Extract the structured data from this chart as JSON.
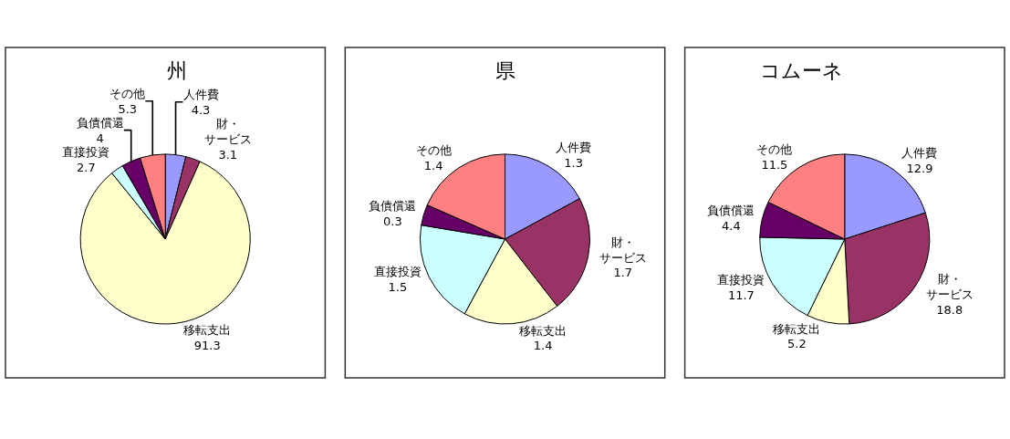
{
  "chart_data": [
    {
      "type": "pie",
      "title": "州",
      "categories": [
        "人件費",
        "財・サービス",
        "移転支出",
        "直接投資",
        "負債償還",
        "その他"
      ],
      "values": [
        4.3,
        3.1,
        91.3,
        2.7,
        4,
        5.3
      ],
      "colors": [
        "#9999ff",
        "#993366",
        "#ffffcc",
        "#ccffff",
        "#660066",
        "#ff8080"
      ],
      "data_labels": true
    },
    {
      "type": "pie",
      "title": "県",
      "categories": [
        "人件費",
        "財・サービス",
        "移転支出",
        "直接投資",
        "負債償還",
        "その他"
      ],
      "values": [
        1.3,
        1.7,
        1.4,
        1.5,
        0.3,
        1.4
      ],
      "colors": [
        "#9999ff",
        "#993366",
        "#ffffcc",
        "#ccffff",
        "#660066",
        "#ff8080"
      ],
      "data_labels": true
    },
    {
      "type": "pie",
      "title": "コムーネ",
      "categories": [
        "人件費",
        "財・サービス",
        "移転支出",
        "直接投資",
        "負債償還",
        "その他"
      ],
      "values": [
        12.9,
        18.8,
        5.2,
        11.7,
        4.4,
        11.5
      ],
      "colors": [
        "#9999ff",
        "#993366",
        "#ffffcc",
        "#ccffff",
        "#660066",
        "#ff8080"
      ],
      "data_labels": true
    }
  ]
}
